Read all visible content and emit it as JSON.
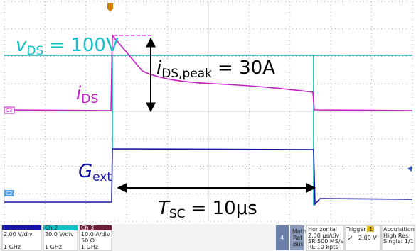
{
  "annotations": {
    "vds": {
      "symbol": "v",
      "sub": "DS",
      "text": "= 100V"
    },
    "ids_peak": {
      "symbol": "i",
      "sub": "DS,peak",
      "text": "= 30A"
    },
    "ids": {
      "symbol": "i",
      "sub": "DS"
    },
    "gext": {
      "symbol": "G",
      "sub": "ext"
    },
    "tsc": {
      "symbol": "T",
      "sub": "SC",
      "text": "= 10μs"
    }
  },
  "markers": {
    "c3": "C3",
    "c2": "C2"
  },
  "status_bar": {
    "ch1": {
      "scale": "2.00 V/div",
      "bw": "1 GHz"
    },
    "ch2": {
      "name": "Ch 2",
      "scale": "20.0 V/div",
      "bw": "1 GHz"
    },
    "ch3": {
      "name": "Ch 3",
      "scale": "10.0 A/div",
      "impedance": "50 Ω",
      "bw": "1 GHz"
    },
    "ch4": "4",
    "math": [
      "Math",
      "Ref",
      "Bus"
    ],
    "horizontal": {
      "title": "Horizontal",
      "lines": [
        "2.00 µs/div",
        "SR:500 MS/s",
        "RL:10 kpts"
      ]
    },
    "trigger": {
      "title": "Trigger",
      "source": "1",
      "level": "2.00 V"
    },
    "acquisition": {
      "title": "Acquisition",
      "lines": [
        "High Res",
        "Single: 1/1"
      ]
    }
  }
}
